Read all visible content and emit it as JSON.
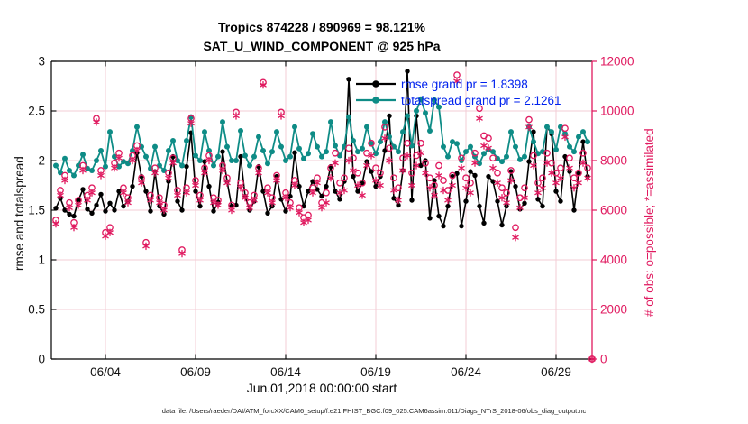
{
  "figure": {
    "caption": "data file: /Users/raeder/DAI/ATM_forcXX/CAM6_setup/f.e21.FHIST_BGC.f09_025.CAM6assim.011/Diags_NTrS_2018-06/obs_diag_output.nc"
  },
  "chart_data": {
    "type": "line",
    "title": [
      "Tropics 874228 / 890969 = 98.121%",
      "SAT_U_WIND_COMPONENT @ 925 hPa"
    ],
    "xlabel": "Jun.01,2018 00:00:00 start",
    "ylabel_left": "rmse and totalspread",
    "ylabel_right": "# of obs: o=possible; *=assimilated",
    "xlim_days_since_start": [
      0,
      30
    ],
    "ylim_left": [
      0,
      3
    ],
    "ylim_right": [
      0,
      12000
    ],
    "grid": true,
    "x_ticks": [
      {
        "day": 3,
        "label": "06/04"
      },
      {
        "day": 8,
        "label": "06/09"
      },
      {
        "day": 13,
        "label": "06/14"
      },
      {
        "day": 18,
        "label": "06/19"
      },
      {
        "day": 23,
        "label": "06/24"
      },
      {
        "day": 28,
        "label": "06/29"
      }
    ],
    "y_ticks_left": [
      0,
      0.5,
      1,
      1.5,
      2,
      2.5,
      3
    ],
    "y_ticks_right": [
      0,
      2000,
      4000,
      6000,
      8000,
      10000,
      12000
    ],
    "x_sampling": {
      "start_day": 0.25,
      "step_day": 0.25,
      "count": 120,
      "note": "6-hourly bins, days since Jun 1 2018 00:00"
    },
    "colors": {
      "rmse": "#000000",
      "totalspread": "#0e8c86",
      "obs": "#e0195f",
      "legend_text": "#0022ee",
      "grid": "#f3ccd6",
      "axis_left": "#000000",
      "axis_right": "#e0195f",
      "caption_text": "#222222"
    },
    "legend_position": "upper-center",
    "series": [
      {
        "name": "rmse",
        "axis": "left",
        "marker": "dot",
        "legend": "rmse grand pr = 1.8398",
        "grand_mean": 1.8398,
        "values": [
          1.52,
          1.62,
          1.5,
          1.46,
          1.44,
          1.6,
          1.71,
          1.51,
          1.47,
          1.55,
          1.66,
          1.49,
          1.57,
          1.5,
          1.69,
          1.54,
          1.59,
          1.74,
          2.08,
          1.84,
          1.69,
          1.49,
          1.89,
          1.54,
          1.46,
          1.79,
          2.04,
          1.59,
          1.5,
          1.94,
          2.28,
          1.69,
          1.54,
          1.99,
          1.74,
          1.49,
          1.58,
          2.09,
          1.79,
          1.54,
          1.55,
          2.04,
          1.64,
          1.5,
          1.59,
          1.94,
          1.69,
          1.47,
          1.54,
          1.84,
          1.61,
          1.49,
          1.64,
          2.08,
          1.74,
          1.54,
          1.69,
          1.79,
          1.71,
          1.64,
          1.74,
          1.94,
          1.69,
          1.61,
          1.79,
          2.82,
          1.84,
          1.69,
          1.77,
          1.99,
          1.89,
          1.74,
          1.84,
          2.1,
          2.45,
          1.62,
          1.55,
          1.9,
          2.9,
          1.6,
          2.45,
          1.95,
          2.0,
          1.42,
          1.8,
          1.44,
          1.34,
          1.54,
          1.84,
          1.87,
          1.34,
          1.59,
          1.89,
          1.85,
          1.54,
          1.37,
          1.84,
          1.79,
          1.59,
          1.35,
          1.54,
          1.89,
          1.74,
          1.51,
          1.57,
          1.99,
          2.29,
          1.61,
          1.54,
          2.34,
          2.27,
          1.69,
          1.59,
          2.04,
          1.89,
          1.5,
          1.87,
          2.19,
          1.84,
          null
        ]
      },
      {
        "name": "totalspread",
        "axis": "left",
        "marker": "dot",
        "legend": "totalspread grand pr = 2.1261",
        "grand_mean": 2.1261,
        "values": [
          1.95,
          1.88,
          2.02,
          1.9,
          1.85,
          1.95,
          2.06,
          1.92,
          1.9,
          2.0,
          2.1,
          1.94,
          2.29,
          2.04,
          1.94,
          1.99,
          1.97,
          2.1,
          2.34,
          2.14,
          2.04,
          1.92,
          2.14,
          1.95,
          1.9,
          2.1,
          2.2,
          2.0,
          1.95,
          2.2,
          2.44,
          2.05,
          2.0,
          2.29,
          2.1,
          1.95,
          2.04,
          2.39,
          2.14,
          2.0,
          2.0,
          2.3,
          2.05,
          1.95,
          2.04,
          2.24,
          2.1,
          1.97,
          2.09,
          2.29,
          2.14,
          2.0,
          2.04,
          2.34,
          2.12,
          2.02,
          2.07,
          2.27,
          2.14,
          2.04,
          2.09,
          2.39,
          2.15,
          2.05,
          2.14,
          2.44,
          2.2,
          2.09,
          2.12,
          2.34,
          2.17,
          2.07,
          2.19,
          2.39,
          2.24,
          2.14,
          2.09,
          2.29,
          2.45,
          2.15,
          2.5,
          2.62,
          2.48,
          2.3,
          2.61,
          2.54,
          2.14,
          2.04,
          2.19,
          2.17,
          2.0,
          2.09,
          2.14,
          2.04,
          1.97,
          2.07,
          2.11,
          2.09,
          2.02,
          1.99,
          2.04,
          2.29,
          2.14,
          2.01,
          2.04,
          2.34,
          2.19,
          2.07,
          2.09,
          2.34,
          2.29,
          2.11,
          2.34,
          2.27,
          2.14,
          2.09,
          2.24,
          2.29,
          2.19,
          null
        ]
      },
      {
        "name": "obs_possible",
        "axis": "right",
        "marker": "circle",
        "legend": null,
        "values": [
          5600,
          6800,
          7400,
          6300,
          5500,
          6400,
          7800,
          6600,
          6900,
          9700,
          7600,
          5100,
          5300,
          7900,
          8300,
          6900,
          6500,
          8200,
          8600,
          7300,
          4700,
          6600,
          7700,
          6500,
          6200,
          7500,
          8100,
          6800,
          4400,
          6900,
          9700,
          7200,
          6600,
          7700,
          8200,
          6500,
          6400,
          7800,
          7300,
          6200,
          9950,
          7100,
          6700,
          6300,
          6600,
          7700,
          11150,
          6900,
          6500,
          7400,
          9950,
          6700,
          6300,
          7200,
          6100,
          5700,
          5800,
          6900,
          7300,
          6300,
          6700,
          7700,
          8300,
          7100,
          7300,
          8500,
          8100,
          7500,
          7100,
          8300,
          8700,
          7700,
          7500,
          9350,
          8500,
          7300,
          6900,
          8100,
          8700,
          7500,
          8200,
          8700,
          7900,
          7300,
          7000,
          7800,
          7200,
          6800,
          7400,
          11450,
          8100,
          7300,
          7100,
          8300,
          10100,
          9000,
          8900,
          8100,
          7500,
          6900,
          6700,
          7600,
          5300,
          6500,
          6900,
          9650,
          8200,
          7100,
          7300,
          8300,
          7900,
          7500,
          7700,
          9300,
          8100,
          7300,
          7500,
          8300,
          7700,
          0
        ]
      },
      {
        "name": "obs_assimilated",
        "axis": "right",
        "marker": "star",
        "legend": null,
        "values": [
          5450,
          6600,
          7200,
          6100,
          5300,
          6200,
          7600,
          6400,
          6700,
          9550,
          7400,
          4950,
          5100,
          7700,
          8100,
          6700,
          6300,
          8000,
          8400,
          7100,
          4550,
          6400,
          7500,
          6300,
          6000,
          7300,
          7900,
          6600,
          4250,
          6700,
          9500,
          7000,
          6400,
          7500,
          8000,
          6300,
          6200,
          7600,
          7100,
          6000,
          9800,
          6900,
          6500,
          6100,
          6400,
          7500,
          11050,
          6700,
          6300,
          7200,
          9800,
          6500,
          6100,
          7000,
          5900,
          5500,
          5600,
          6700,
          7100,
          6100,
          6300,
          7300,
          7900,
          6700,
          6800,
          8000,
          7600,
          7000,
          6600,
          7800,
          8200,
          7200,
          7000,
          8900,
          8000,
          6800,
          6400,
          7600,
          8200,
          7000,
          7800,
          8300,
          7500,
          6900,
          6600,
          7400,
          6800,
          6400,
          7000,
          11200,
          7700,
          6900,
          6700,
          7900,
          9700,
          8600,
          8500,
          7700,
          7100,
          6500,
          6300,
          7200,
          4900,
          6100,
          6500,
          9350,
          7800,
          6700,
          6900,
          7900,
          7500,
          7100,
          7300,
          8950,
          7700,
          6900,
          7100,
          7900,
          7300,
          0
        ]
      }
    ]
  }
}
